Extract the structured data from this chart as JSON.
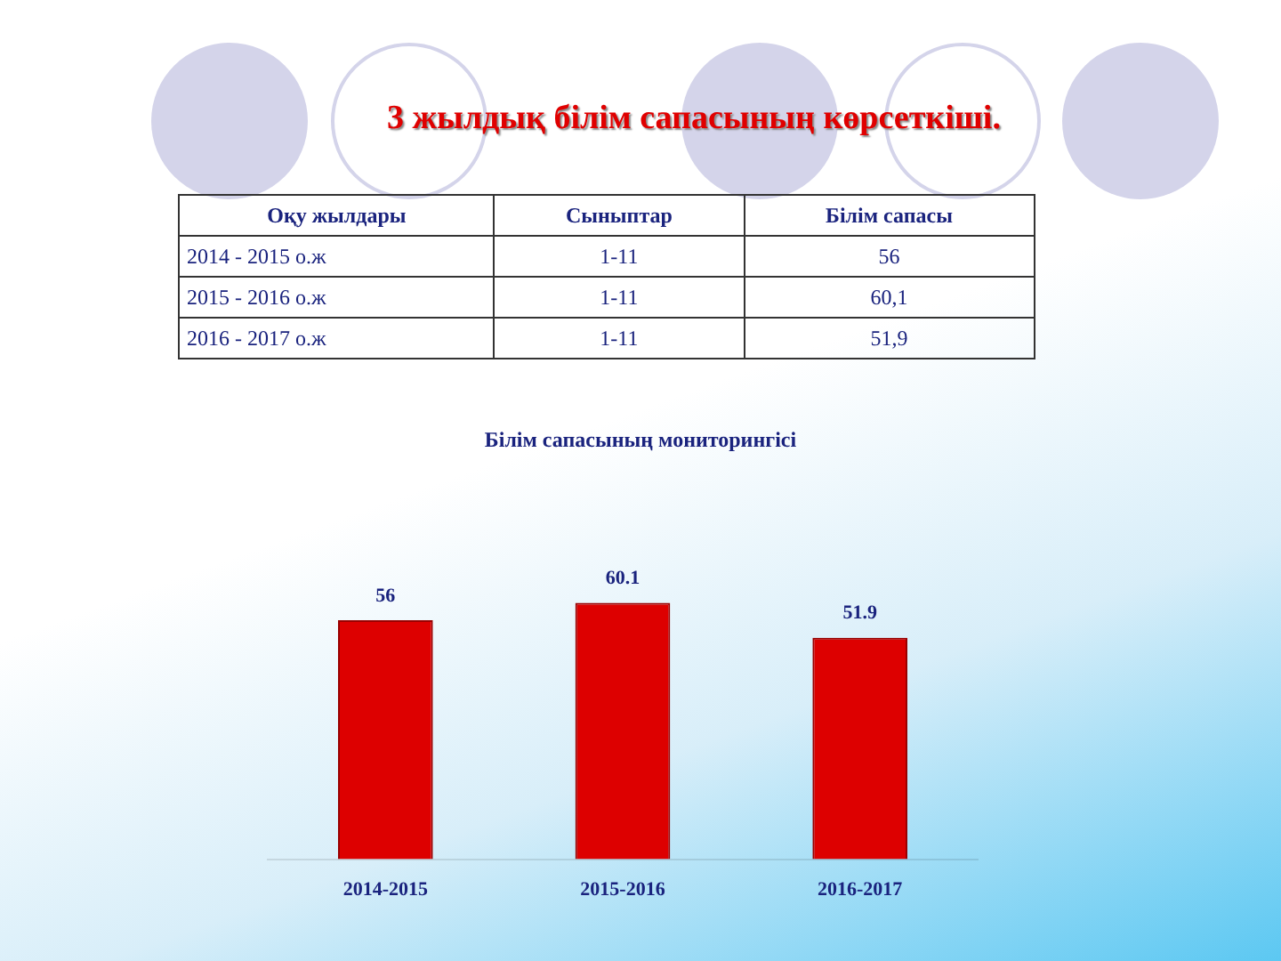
{
  "chart_data": {
    "type": "bar",
    "title": "3 жылдық  білім  сапасының көрсеткіші.",
    "subtitle": "Білім сапасының мониторингісі",
    "annotations": [
      "Оқу жылдары",
      "Сыныптар",
      "Білім сапасы",
      "2014 - 2015 о.ж",
      "1-11",
      "56",
      "2015 - 2016 о.ж",
      "1-11",
      "60,1",
      "2016 - 2017 о.ж",
      "1-11",
      "51,9"
    ],
    "categories": [
      "2014-2015",
      "2015-2016",
      "2016-2017"
    ],
    "values": [
      56,
      60.1,
      51.9
    ],
    "color": "#dd0000",
    "data_labels": true,
    "grid": false,
    "legend": false
  }
}
